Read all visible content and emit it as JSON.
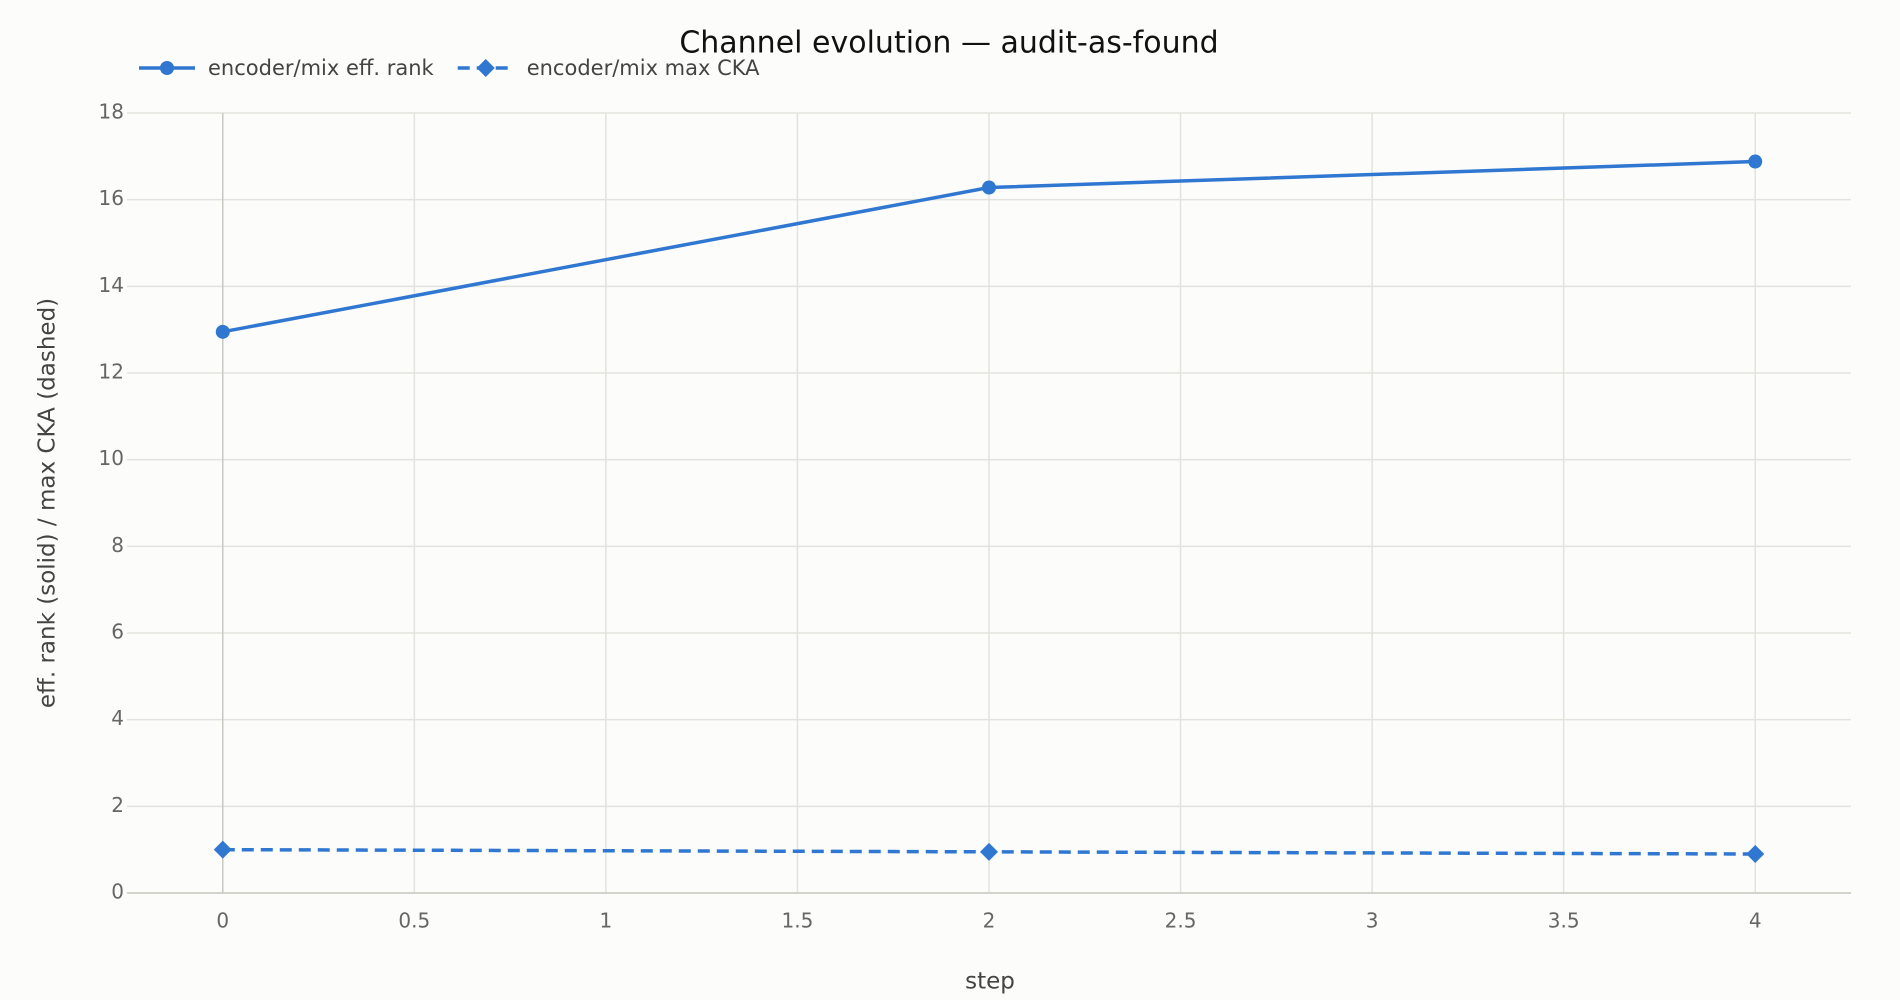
{
  "chart_data": {
    "type": "line",
    "title": "Channel evolution — audit-as-found",
    "x_label": "step",
    "y_label": "eff. rank (solid) / max CKA (dashed)",
    "x": [
      0,
      2,
      4
    ],
    "series": [
      {
        "name": "encoder/mix eff. rank",
        "color": "#2f77d0",
        "dash": "solid",
        "marker": "circle",
        "values": [
          12.95,
          16.28,
          16.88
        ]
      },
      {
        "name": "encoder/mix max CKA",
        "color": "#2f77d0",
        "dash": "dashed",
        "marker": "diamond",
        "values": [
          1.0,
          0.95,
          0.9
        ]
      }
    ],
    "xlim": [
      -0.25,
      4.25
    ],
    "xticks": [
      0,
      0.5,
      1,
      1.5,
      2,
      2.5,
      3,
      3.5,
      4
    ],
    "ylim": [
      0,
      18
    ],
    "yticks": [
      0,
      2,
      4,
      6,
      8,
      10,
      12,
      14,
      16,
      18
    ],
    "grid": true,
    "legend": "top-left"
  }
}
